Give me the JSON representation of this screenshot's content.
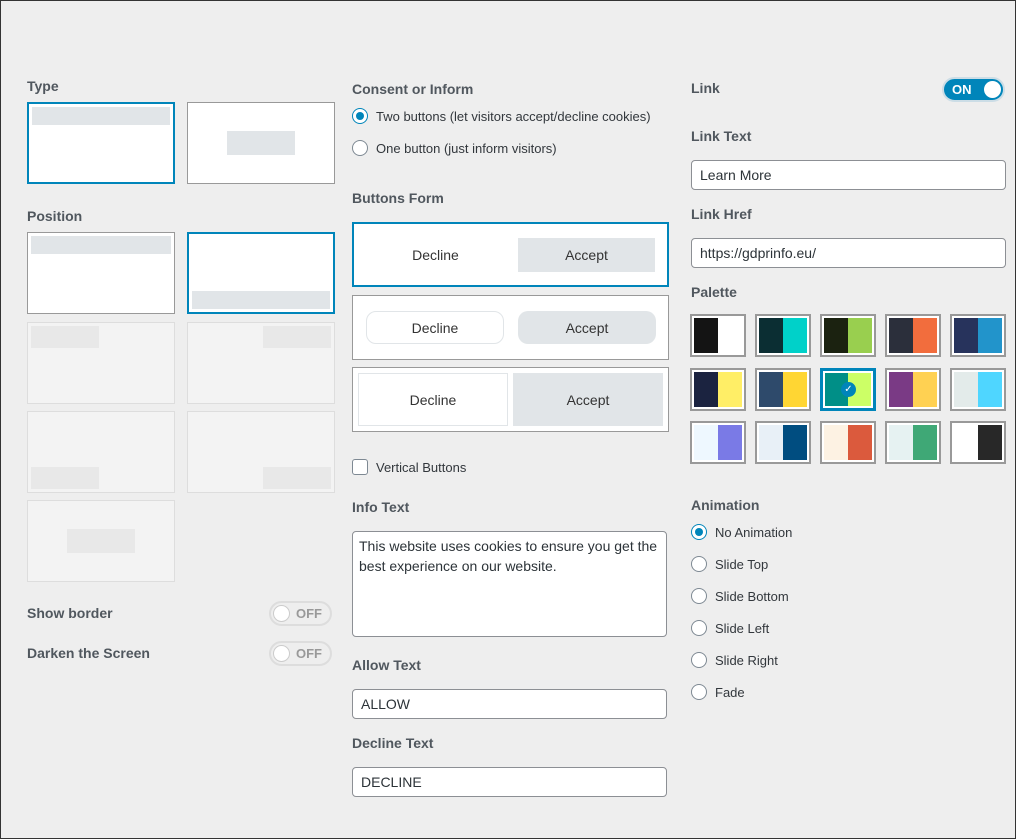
{
  "left": {
    "type_label": "Type",
    "position_label": "Position",
    "show_border": {
      "label": "Show border",
      "state": "OFF"
    },
    "darken_screen": {
      "label": "Darken the Screen",
      "state": "OFF"
    }
  },
  "middle": {
    "consent_label": "Consent or Inform",
    "consent_options": [
      "Two buttons (let visitors accept/decline cookies)",
      "One button (just inform visitors)"
    ],
    "buttons_form_label": "Buttons Form",
    "decline": "Decline",
    "accept": "Accept",
    "vertical_buttons": "Vertical Buttons",
    "info_text_label": "Info Text",
    "info_text": "This website uses cookies to ensure you get the best experience on our website.",
    "allow_text_label": "Allow Text",
    "allow_text": "ALLOW",
    "decline_text_label": "Decline Text",
    "decline_text": "DECLINE"
  },
  "right": {
    "link_label": "Link",
    "link_state": "ON",
    "link_text_label": "Link Text",
    "link_text": "Learn More",
    "link_href_label": "Link Href",
    "link_href": "https://gdprinfo.eu/",
    "palette_label": "Palette",
    "palettes": [
      [
        "#141414",
        "#ffffff"
      ],
      [
        "#0b2e33",
        "#00d1c9"
      ],
      [
        "#1b2210",
        "#99cf4f"
      ],
      [
        "#2b2f3b",
        "#f26d3d"
      ],
      [
        "#27335c",
        "#2294cb"
      ],
      [
        "#1b2340",
        "#ffee66"
      ],
      [
        "#2e4a6b",
        "#ffd633"
      ],
      [
        "#008f87",
        "#ccff66"
      ],
      [
        "#7a3a85",
        "#ffd152"
      ],
      [
        "#e3ebea",
        "#4fd6ff"
      ],
      [
        "#eef8ff",
        "#7a7ae6"
      ],
      [
        "#e8f0f7",
        "#004d80"
      ],
      [
        "#fdf2e3",
        "#db5a3d"
      ],
      [
        "#e6f2f2",
        "#3fa876"
      ],
      [
        "#ffffff",
        "#282828"
      ]
    ],
    "selected_palette": 7,
    "animation_label": "Animation",
    "animations": [
      "No Animation",
      "Slide Top",
      "Slide Bottom",
      "Slide Left",
      "Slide Right",
      "Fade"
    ],
    "selected_animation": 0
  }
}
